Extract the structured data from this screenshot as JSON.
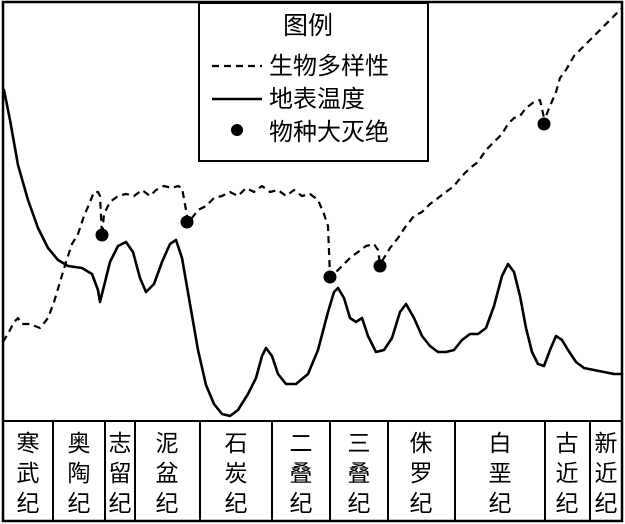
{
  "legend": {
    "title": "图例",
    "items": [
      {
        "label": "生物多样性",
        "style": "dashed-line"
      },
      {
        "label": "地表温度",
        "style": "solid-line"
      },
      {
        "label": "物种大灭绝",
        "style": "dot"
      }
    ]
  },
  "periods": [
    {
      "name": "寒武纪",
      "chars": [
        "寒",
        "武",
        "纪"
      ]
    },
    {
      "name": "奥陶纪",
      "chars": [
        "奥",
        "陶",
        "纪"
      ]
    },
    {
      "name": "志留纪",
      "chars": [
        "志",
        "留",
        "纪"
      ]
    },
    {
      "name": "泥盆纪",
      "chars": [
        "泥",
        "盆",
        "纪"
      ]
    },
    {
      "name": "石炭纪",
      "chars": [
        "石",
        "炭",
        "纪"
      ]
    },
    {
      "name": "二叠纪",
      "chars": [
        "二",
        "叠",
        "纪"
      ]
    },
    {
      "name": "三叠纪",
      "chars": [
        "三",
        "叠",
        "纪"
      ]
    },
    {
      "name": "侏罗纪",
      "chars": [
        "侏",
        "罗",
        "纪"
      ]
    },
    {
      "name": "白垩纪",
      "chars": [
        "白",
        "垩",
        "纪"
      ]
    },
    {
      "name": "古近纪",
      "chars": [
        "古",
        "近",
        "纪"
      ]
    },
    {
      "name": "新近纪",
      "chars": [
        "新",
        "近",
        "纪"
      ]
    }
  ],
  "mass_extinctions": [
    {
      "after_period": "奥陶纪"
    },
    {
      "period": "泥盆纪"
    },
    {
      "after_period": "二叠纪"
    },
    {
      "period": "三叠纪"
    },
    {
      "after_period": "白垩纪"
    }
  ],
  "colors": {
    "ink": "#000000",
    "background": "#ffffff"
  }
}
